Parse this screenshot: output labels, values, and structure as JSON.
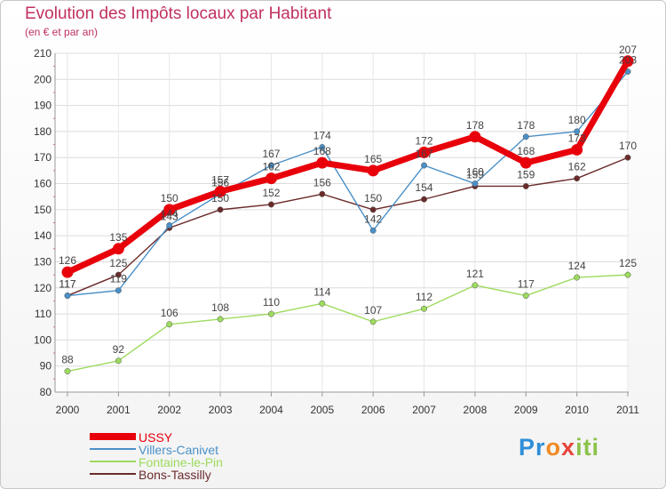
{
  "title": "Evolution des Impôts locaux par Habitant",
  "subtitle": "(en € et par an)",
  "logo_text": [
    "Pr",
    "o",
    "x",
    "iti"
  ],
  "chart_data": {
    "type": "line",
    "title": "Evolution des Impôts locaux par Habitant",
    "subtitle": "(en € et par an)",
    "xlabel": "",
    "ylabel": "",
    "categories": [
      "2000",
      "2001",
      "2002",
      "2003",
      "2004",
      "2005",
      "2006",
      "2007",
      "2008",
      "2009",
      "2010",
      "2011"
    ],
    "ylim": [
      80,
      210
    ],
    "yticks": [
      80,
      90,
      100,
      110,
      120,
      130,
      140,
      150,
      160,
      170,
      180,
      190,
      200,
      210
    ],
    "grid": true,
    "legend_position": "bottom-left",
    "series": [
      {
        "name": "USSY",
        "color": "#e8000b",
        "values": [
          126,
          135,
          150,
          157,
          162,
          168,
          165,
          172,
          178,
          168,
          173,
          207
        ],
        "labels": [
          "126",
          "135",
          "150",
          "157",
          "162",
          "168",
          "165",
          "172",
          "178",
          "168",
          "173",
          "207"
        ]
      },
      {
        "name": "Villers-Canivet",
        "color": "#4a90c8",
        "values": [
          117,
          119,
          144,
          156,
          167,
          174,
          142,
          167,
          160,
          178,
          180,
          203
        ],
        "labels": [
          "117",
          "119",
          "144",
          "156",
          "167",
          "174",
          "142",
          "167",
          "160",
          "178",
          "180",
          "203"
        ]
      },
      {
        "name": "Fontaine-le-Pin",
        "color": "#9ddb5e",
        "values": [
          88,
          92,
          106,
          108,
          110,
          114,
          107,
          112,
          121,
          117,
          124,
          125
        ],
        "labels": [
          "88",
          "92",
          "106",
          "108",
          "110",
          "114",
          "107",
          "112",
          "121",
          "117",
          "124",
          "125"
        ]
      },
      {
        "name": "Bons-Tassilly",
        "color": "#6b2a2a",
        "values": [
          117,
          125,
          143,
          150,
          152,
          156,
          150,
          154,
          159,
          159,
          162,
          170
        ],
        "labels": [
          "117",
          "125",
          "143",
          "150",
          "152",
          "156",
          "150",
          "154",
          "159",
          "159",
          "162",
          "170"
        ]
      }
    ]
  }
}
